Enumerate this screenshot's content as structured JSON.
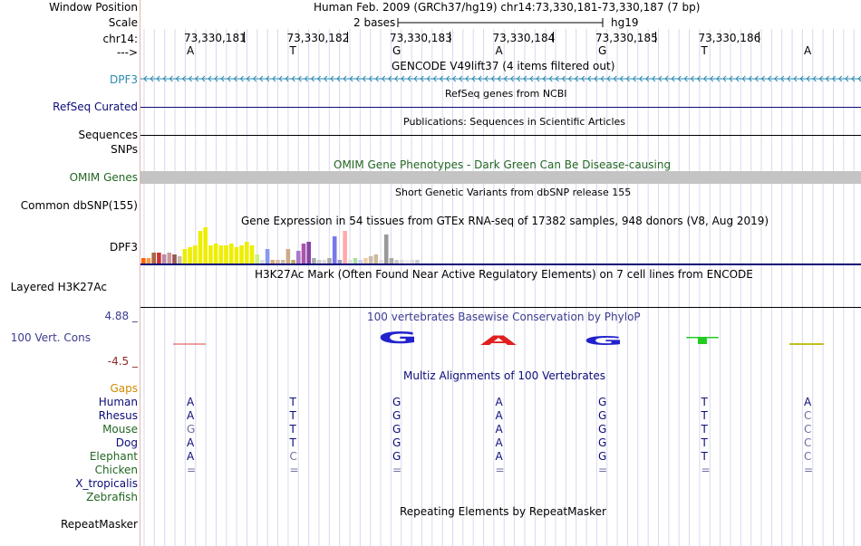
{
  "header": {
    "window_position_label": "Window Position",
    "scale_label": "Scale",
    "chrom_label": "chr14:",
    "strand_label": "--->",
    "assembly_text": "Human Feb. 2009 (GRCh37/hg19)   chr14:73,330,181-73,330,187 (7 bp)",
    "scale_text": "2 bases",
    "scale_assembly": "hg19",
    "positions": [
      "73,330,181",
      "73,330,182",
      "73,330,183",
      "73,330,184",
      "73,330,185",
      "73,330,186"
    ],
    "bases": [
      "A",
      "T",
      "G",
      "A",
      "G",
      "T",
      "A"
    ]
  },
  "tracks": {
    "gencode": {
      "title": "GENCODE V49lift37 (4 items filtered out)",
      "label": "DPF3",
      "color": "#2a8ab0"
    },
    "refseq": {
      "title": "RefSeq genes from NCBI",
      "label": "RefSeq Curated",
      "color": "#0c0c78"
    },
    "publications": {
      "title": "Publications: Sequences in Scientific Articles",
      "label": "Sequences"
    },
    "snps": {
      "label": "SNPs"
    },
    "omim": {
      "title": "OMIM Gene Phenotypes - Dark Green Can Be Disease-causing",
      "label": "OMIM Genes",
      "color": "#226622"
    },
    "dbsnp": {
      "title": "Short Genetic Variants from dbSNP release 155",
      "label": "Common dbSNP(155)"
    },
    "gtex": {
      "title": "Gene Expression in 54 tissues from GTEx RNA-seq of 17382 samples, 948 donors (V8, Aug 2019)",
      "label": "DPF3"
    },
    "h3k27ac": {
      "title": "H3K27Ac Mark (Often Found Near Active Regulatory Elements) on 7 cell lines from ENCODE",
      "label": "Layered H3K27Ac"
    },
    "cons": {
      "title": "100 vertebrates Basewise Conservation by PhyloP",
      "label": "100 Vert. Cons",
      "max": "4.88 _",
      "min": "-4.5 _",
      "color": "#3c3c90",
      "min_color": "#8b2a2a"
    },
    "multiz": {
      "title": "Multiz Alignments of 100 Vertebrates",
      "gaps_label": "Gaps",
      "gaps_color": "#d08a00"
    },
    "repeat": {
      "title": "Repeating Elements by RepeatMasker",
      "label": "RepeatMasker"
    }
  },
  "alignment": {
    "species": [
      {
        "name": "Human",
        "color": "#0c0c78",
        "bases": [
          "A",
          "T",
          "G",
          "A",
          "G",
          "T",
          "A"
        ],
        "dim": [
          false,
          false,
          false,
          false,
          false,
          false,
          false
        ]
      },
      {
        "name": "Rhesus",
        "color": "#0c0c78",
        "bases": [
          "A",
          "T",
          "G",
          "A",
          "G",
          "T",
          "C"
        ],
        "dim": [
          false,
          false,
          false,
          false,
          false,
          false,
          true
        ]
      },
      {
        "name": "Mouse",
        "color": "#226622",
        "bases": [
          "G",
          "T",
          "G",
          "A",
          "G",
          "T",
          "C"
        ],
        "dim": [
          true,
          false,
          false,
          false,
          false,
          false,
          true
        ]
      },
      {
        "name": "Dog",
        "color": "#0c0c78",
        "bases": [
          "A",
          "T",
          "G",
          "A",
          "G",
          "T",
          "C"
        ],
        "dim": [
          false,
          false,
          false,
          false,
          false,
          false,
          true
        ]
      },
      {
        "name": "Elephant",
        "color": "#226622",
        "bases": [
          "A",
          "C",
          "G",
          "A",
          "G",
          "T",
          "C"
        ],
        "dim": [
          false,
          true,
          false,
          false,
          false,
          false,
          true
        ]
      },
      {
        "name": "Chicken",
        "color": "#226622",
        "bases": [
          "=",
          "=",
          "=",
          "=",
          "=",
          "=",
          "="
        ],
        "dim": [
          true,
          true,
          true,
          true,
          true,
          true,
          true
        ]
      },
      {
        "name": "X_tropicalis",
        "color": "#0c0c78",
        "bases": [],
        "dim": []
      },
      {
        "name": "Zebrafish",
        "color": "#226622",
        "bases": [],
        "dim": []
      }
    ]
  },
  "colors": {
    "dim_base": "#7070a0",
    "grid": "#d8d8ee"
  },
  "gtex_bars": [
    {
      "v": 0.15,
      "c": "#ff6600"
    },
    {
      "v": 0.15,
      "c": "#ff9944"
    },
    {
      "v": 0.3,
      "c": "#aa6644"
    },
    {
      "v": 0.3,
      "c": "#cc3333"
    },
    {
      "v": 0.25,
      "c": "#bb88aa"
    },
    {
      "v": 0.3,
      "c": "#cc9999"
    },
    {
      "v": 0.25,
      "c": "#995555"
    },
    {
      "v": 0.2,
      "c": "#ccbbaa"
    },
    {
      "v": 0.4,
      "c": "#eeee00"
    },
    {
      "v": 0.45,
      "c": "#eeee00"
    },
    {
      "v": 0.5,
      "c": "#eeee00"
    },
    {
      "v": 0.9,
      "c": "#eeee00"
    },
    {
      "v": 1.0,
      "c": "#eeee00"
    },
    {
      "v": 0.5,
      "c": "#eeee00"
    },
    {
      "v": 0.55,
      "c": "#eeee00"
    },
    {
      "v": 0.5,
      "c": "#eeee00"
    },
    {
      "v": 0.5,
      "c": "#eeee00"
    },
    {
      "v": 0.55,
      "c": "#eeee00"
    },
    {
      "v": 0.45,
      "c": "#eeee00"
    },
    {
      "v": 0.5,
      "c": "#eeee00"
    },
    {
      "v": 0.6,
      "c": "#eeee00"
    },
    {
      "v": 0.5,
      "c": "#eeee00"
    },
    {
      "v": 0.25,
      "c": "#ccee88"
    },
    {
      "v": 0.1,
      "c": "#dddddd"
    },
    {
      "v": 0.4,
      "c": "#8899ee"
    },
    {
      "v": 0.1,
      "c": "#ddaa77"
    },
    {
      "v": 0.1,
      "c": "#ddbbaa"
    },
    {
      "v": 0.1,
      "c": "#ccbbaa"
    },
    {
      "v": 0.4,
      "c": "#ccaa88"
    },
    {
      "v": 0.1,
      "c": "#bbaa66"
    },
    {
      "v": 0.35,
      "c": "#aa77cc"
    },
    {
      "v": 0.55,
      "c": "#aa55aa"
    },
    {
      "v": 0.6,
      "c": "#8844aa"
    },
    {
      "v": 0.15,
      "c": "#aaaaaa"
    },
    {
      "v": 0.1,
      "c": "#cccccc"
    },
    {
      "v": 0.1,
      "c": "#dddddd"
    },
    {
      "v": 0.15,
      "c": "#aaaaaa"
    },
    {
      "v": 0.75,
      "c": "#7777ee"
    },
    {
      "v": 0.1,
      "c": "#9999cc"
    },
    {
      "v": 0.9,
      "c": "#ffaaaa"
    },
    {
      "v": 0.1,
      "c": "#dddddd"
    },
    {
      "v": 0.15,
      "c": "#aaddaa"
    },
    {
      "v": 0.1,
      "c": "#ccccee"
    },
    {
      "v": 0.15,
      "c": "#eeccaa"
    },
    {
      "v": 0.2,
      "c": "#ccbbaa"
    },
    {
      "v": 0.25,
      "c": "#ccbb99"
    },
    {
      "v": 0.1,
      "c": "#dddddd"
    },
    {
      "v": 0.8,
      "c": "#999999"
    },
    {
      "v": 0.15,
      "c": "#aaaaaa"
    },
    {
      "v": 0.1,
      "c": "#cccccc"
    },
    {
      "v": 0.1,
      "c": "#dddddd"
    },
    {
      "v": 0.1,
      "c": "#eeeeee"
    },
    {
      "v": 0.1,
      "c": "#dddddd"
    },
    {
      "v": 0.1,
      "c": "#cccccc"
    }
  ]
}
